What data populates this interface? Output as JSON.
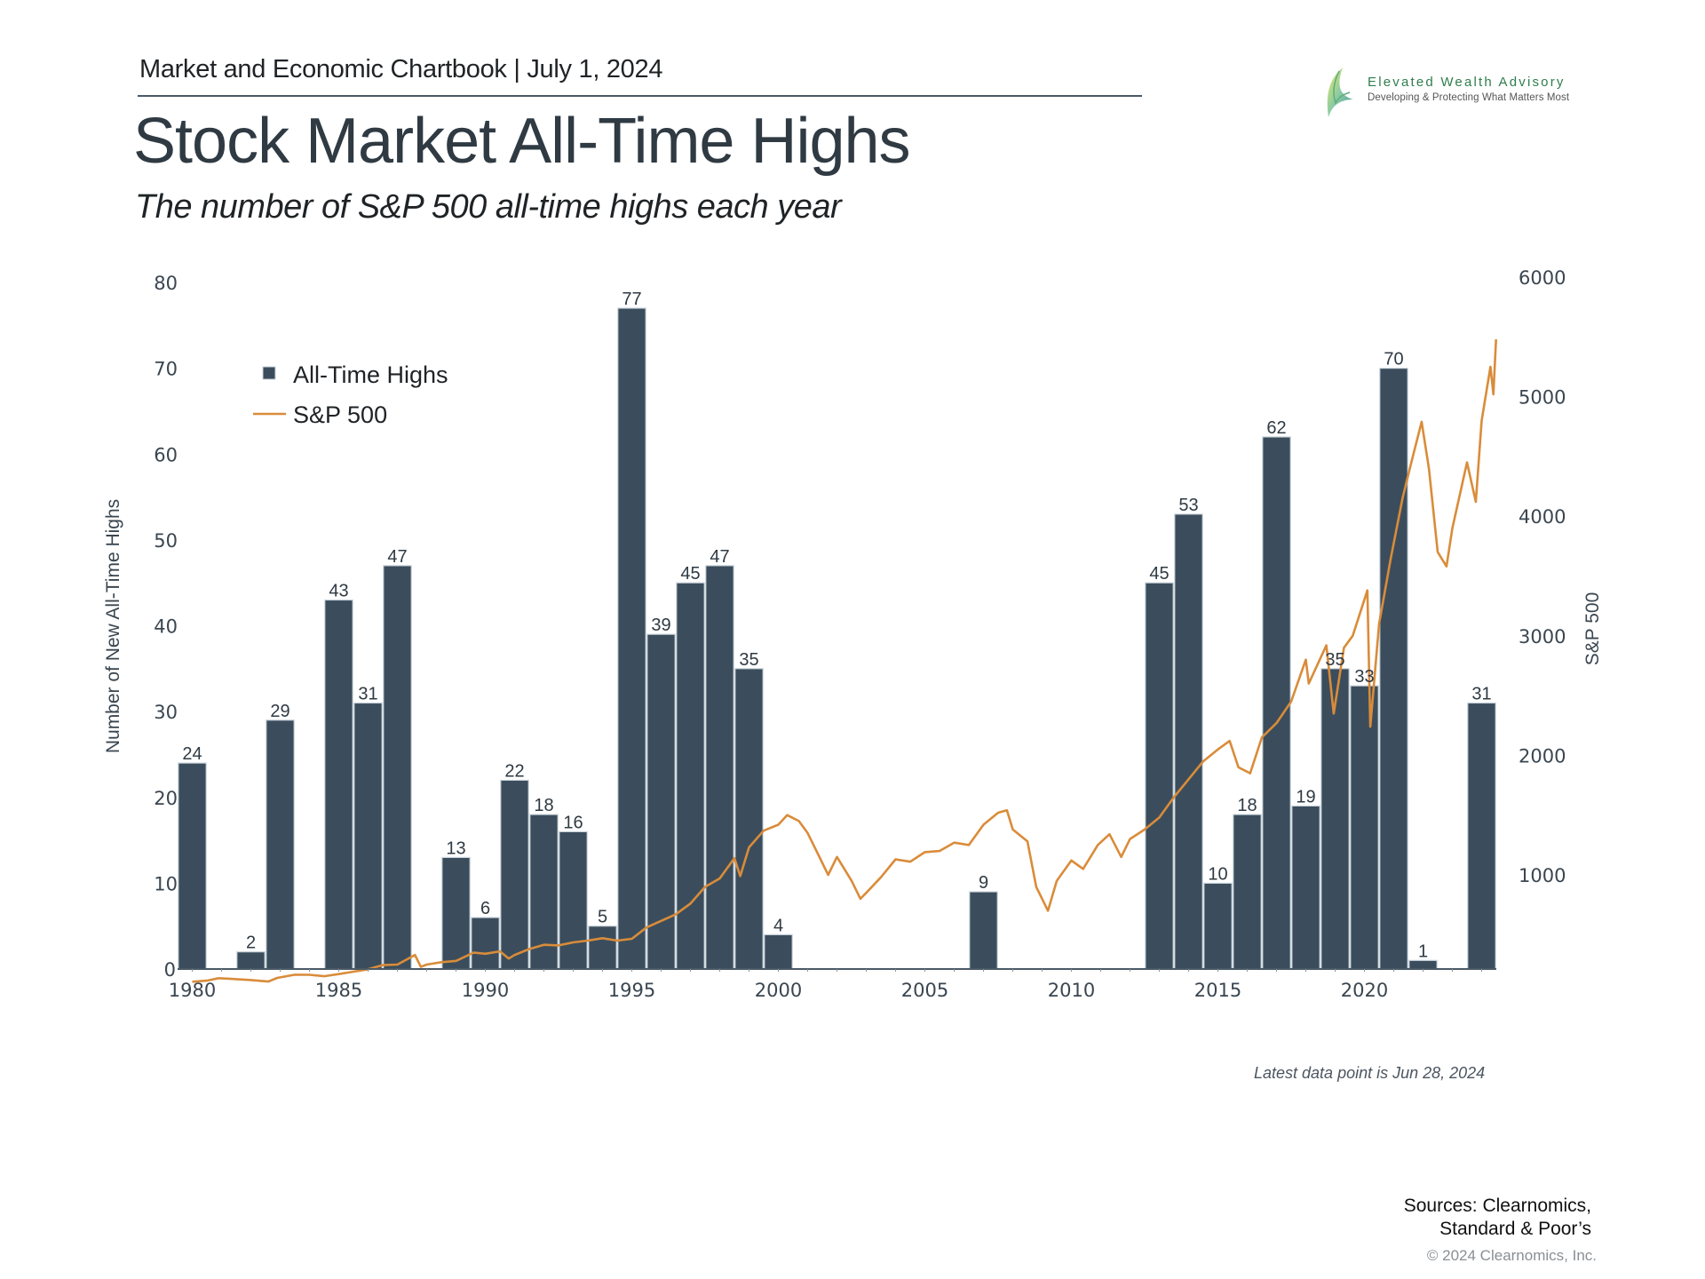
{
  "header": {
    "chartbook_line": "Market and Economic Chartbook | July 1, 2024",
    "title": "Stock Market All-Time Highs",
    "subtitle": "The number of S&P 500 all-time highs each year"
  },
  "logo": {
    "name": "Elevated Wealth Advisory",
    "tagline": "Developing & Protecting What Matters Most",
    "icon": "sail-leaf-icon"
  },
  "colors": {
    "bar": "#3b4d5c",
    "bar_border": "#c9d3db",
    "line": "#d98c3a",
    "axis": "#4a5965"
  },
  "chart_data": {
    "type": "bar",
    "title": "Stock Market All-Time Highs",
    "subtitle": "The number of S&P 500 all-time highs each year",
    "xlabel": "",
    "ylabel": "Number of New All-Time Highs",
    "y2label": "S&P 500",
    "ylim": [
      0,
      80
    ],
    "y2lim": [
      0,
      6000
    ],
    "grid": false,
    "legend_position": "top-left",
    "x_ticks": [
      1980,
      1985,
      1990,
      1995,
      2000,
      2005,
      2010,
      2015,
      2020
    ],
    "y_ticks": [
      0,
      10,
      20,
      30,
      40,
      50,
      60,
      70,
      80
    ],
    "y2_ticks": [
      1000,
      2000,
      3000,
      4000,
      5000,
      6000
    ],
    "categories": [
      1980,
      1981,
      1982,
      1983,
      1984,
      1985,
      1986,
      1987,
      1988,
      1989,
      1990,
      1991,
      1992,
      1993,
      1994,
      1995,
      1996,
      1997,
      1998,
      1999,
      2000,
      2001,
      2002,
      2003,
      2004,
      2005,
      2006,
      2007,
      2008,
      2009,
      2010,
      2011,
      2012,
      2013,
      2014,
      2015,
      2016,
      2017,
      2018,
      2019,
      2020,
      2021,
      2022,
      2023,
      2024
    ],
    "series": [
      {
        "name": "All-Time Highs",
        "type": "bar",
        "axis": "left",
        "values": [
          24,
          0,
          2,
          29,
          0,
          43,
          31,
          47,
          0,
          13,
          6,
          22,
          18,
          16,
          5,
          77,
          39,
          45,
          47,
          35,
          4,
          0,
          0,
          0,
          0,
          0,
          0,
          9,
          0,
          0,
          0,
          0,
          0,
          45,
          53,
          10,
          18,
          62,
          19,
          35,
          33,
          70,
          1,
          0,
          31
        ]
      },
      {
        "name": "S&P 500",
        "type": "line",
        "axis": "right",
        "points": [
          [
            1980.0,
            106
          ],
          [
            1980.5,
            115
          ],
          [
            1980.9,
            136
          ],
          [
            1981.5,
            128
          ],
          [
            1982.0,
            120
          ],
          [
            1982.6,
            108
          ],
          [
            1982.9,
            138
          ],
          [
            1983.5,
            165
          ],
          [
            1984.0,
            164
          ],
          [
            1984.5,
            152
          ],
          [
            1985.0,
            170
          ],
          [
            1985.5,
            190
          ],
          [
            1986.0,
            210
          ],
          [
            1986.5,
            245
          ],
          [
            1987.0,
            250
          ],
          [
            1987.6,
            330
          ],
          [
            1987.8,
            230
          ],
          [
            1988.0,
            250
          ],
          [
            1988.5,
            270
          ],
          [
            1989.0,
            280
          ],
          [
            1989.6,
            350
          ],
          [
            1990.0,
            340
          ],
          [
            1990.5,
            360
          ],
          [
            1990.8,
            300
          ],
          [
            1991.0,
            330
          ],
          [
            1991.5,
            380
          ],
          [
            1992.0,
            415
          ],
          [
            1992.5,
            410
          ],
          [
            1993.0,
            435
          ],
          [
            1993.5,
            450
          ],
          [
            1994.0,
            470
          ],
          [
            1994.5,
            450
          ],
          [
            1995.0,
            465
          ],
          [
            1995.5,
            560
          ],
          [
            1996.0,
            615
          ],
          [
            1996.5,
            670
          ],
          [
            1997.0,
            760
          ],
          [
            1997.5,
            900
          ],
          [
            1998.0,
            970
          ],
          [
            1998.5,
            1140
          ],
          [
            1998.7,
            990
          ],
          [
            1999.0,
            1230
          ],
          [
            1999.5,
            1370
          ],
          [
            2000.0,
            1420
          ],
          [
            2000.3,
            1500
          ],
          [
            2000.7,
            1450
          ],
          [
            2001.0,
            1350
          ],
          [
            2001.3,
            1200
          ],
          [
            2001.7,
            1000
          ],
          [
            2002.0,
            1150
          ],
          [
            2002.5,
            950
          ],
          [
            2002.8,
            800
          ],
          [
            2003.0,
            850
          ],
          [
            2003.5,
            980
          ],
          [
            2004.0,
            1130
          ],
          [
            2004.5,
            1110
          ],
          [
            2005.0,
            1190
          ],
          [
            2005.5,
            1200
          ],
          [
            2006.0,
            1270
          ],
          [
            2006.5,
            1250
          ],
          [
            2007.0,
            1420
          ],
          [
            2007.5,
            1520
          ],
          [
            2007.8,
            1540
          ],
          [
            2008.0,
            1380
          ],
          [
            2008.5,
            1280
          ],
          [
            2008.8,
            900
          ],
          [
            2009.2,
            700
          ],
          [
            2009.5,
            950
          ],
          [
            2010.0,
            1120
          ],
          [
            2010.4,
            1050
          ],
          [
            2010.9,
            1250
          ],
          [
            2011.3,
            1340
          ],
          [
            2011.7,
            1150
          ],
          [
            2012.0,
            1300
          ],
          [
            2012.5,
            1380
          ],
          [
            2013.0,
            1480
          ],
          [
            2013.5,
            1650
          ],
          [
            2014.0,
            1800
          ],
          [
            2014.5,
            1950
          ],
          [
            2015.0,
            2050
          ],
          [
            2015.4,
            2120
          ],
          [
            2015.7,
            1900
          ],
          [
            2016.1,
            1850
          ],
          [
            2016.5,
            2150
          ],
          [
            2017.0,
            2270
          ],
          [
            2017.5,
            2450
          ],
          [
            2018.0,
            2800
          ],
          [
            2018.1,
            2600
          ],
          [
            2018.7,
            2920
          ],
          [
            2018.95,
            2350
          ],
          [
            2019.3,
            2900
          ],
          [
            2019.6,
            3000
          ],
          [
            2020.1,
            3380
          ],
          [
            2020.2,
            2240
          ],
          [
            2020.5,
            3100
          ],
          [
            2020.9,
            3650
          ],
          [
            2021.3,
            4150
          ],
          [
            2021.6,
            4450
          ],
          [
            2021.95,
            4790
          ],
          [
            2022.2,
            4400
          ],
          [
            2022.5,
            3700
          ],
          [
            2022.8,
            3580
          ],
          [
            2023.0,
            3900
          ],
          [
            2023.5,
            4450
          ],
          [
            2023.8,
            4120
          ],
          [
            2024.0,
            4800
          ],
          [
            2024.3,
            5250
          ],
          [
            2024.4,
            5020
          ],
          [
            2024.49,
            5480
          ]
        ]
      }
    ],
    "legend": [
      {
        "label": "All-Time Highs",
        "type": "square"
      },
      {
        "label": "S&P 500",
        "type": "line"
      }
    ],
    "annotation": "Latest data point is Jun 28, 2024"
  },
  "footer": {
    "note": "Latest data point is Jun 28, 2024",
    "sources_line1": "Sources: Clearnomics,",
    "sources_line2": "Standard & Poor’s",
    "copyright": "© 2024 Clearnomics, Inc."
  }
}
